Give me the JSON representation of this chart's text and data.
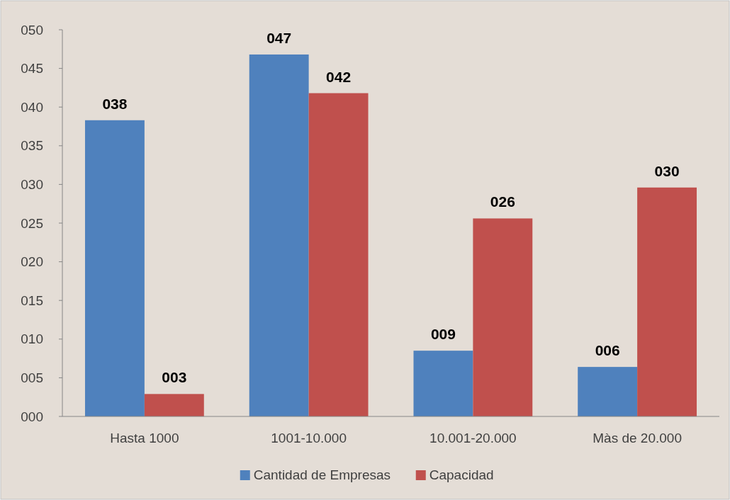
{
  "chart_data": {
    "type": "bar",
    "categories": [
      "Hasta 1000",
      "1001-10.000",
      "10.001-20.000",
      "Màs de 20.000"
    ],
    "series": [
      {
        "name": "Cantidad de Empresas",
        "color": "#4f81bd",
        "values": [
          38.3,
          46.8,
          8.5,
          6.4
        ],
        "value_labels": [
          "038",
          "047",
          "009",
          "006"
        ]
      },
      {
        "name": "Capacidad",
        "color": "#c0504d",
        "values": [
          2.9,
          41.8,
          25.6,
          29.6
        ],
        "value_labels": [
          "003",
          "042",
          "026",
          "030"
        ]
      }
    ],
    "ylim": [
      0,
      50
    ],
    "yticks": [
      {
        "value": 0,
        "label": "000"
      },
      {
        "value": 5,
        "label": "005"
      },
      {
        "value": 10,
        "label": "010"
      },
      {
        "value": 15,
        "label": "015"
      },
      {
        "value": 20,
        "label": "020"
      },
      {
        "value": 25,
        "label": "025"
      },
      {
        "value": 30,
        "label": "030"
      },
      {
        "value": 35,
        "label": "035"
      },
      {
        "value": 40,
        "label": "040"
      },
      {
        "value": 45,
        "label": "045"
      },
      {
        "value": 50,
        "label": "050"
      }
    ],
    "grid": false,
    "legend": "bottom"
  }
}
